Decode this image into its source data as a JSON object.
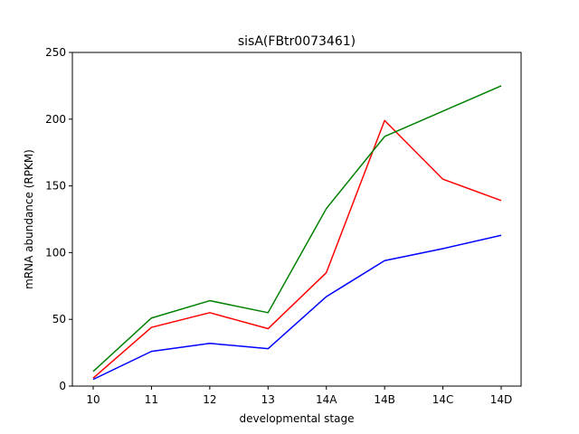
{
  "chart_data": {
    "type": "line",
    "title": "sisA(FBtr0073461)",
    "xlabel": "developmental stage",
    "ylabel": "mRNA abundance (RPKM)",
    "categories": [
      "10",
      "11",
      "12",
      "13",
      "14A",
      "14B",
      "14C",
      "14D"
    ],
    "ylim": [
      0,
      250
    ],
    "yticks": [
      0,
      50,
      100,
      150,
      200,
      250
    ],
    "grid": false,
    "legend": "none",
    "series": [
      {
        "color": "#0000ff",
        "values": [
          5,
          26,
          32,
          28,
          67,
          94,
          103,
          113
        ]
      },
      {
        "color": "#ff0000",
        "values": [
          6,
          44,
          55,
          43,
          85,
          199,
          155,
          139
        ]
      },
      {
        "color": "#008000",
        "values": [
          11,
          51,
          64,
          55,
          133,
          187,
          206,
          225
        ]
      }
    ]
  }
}
